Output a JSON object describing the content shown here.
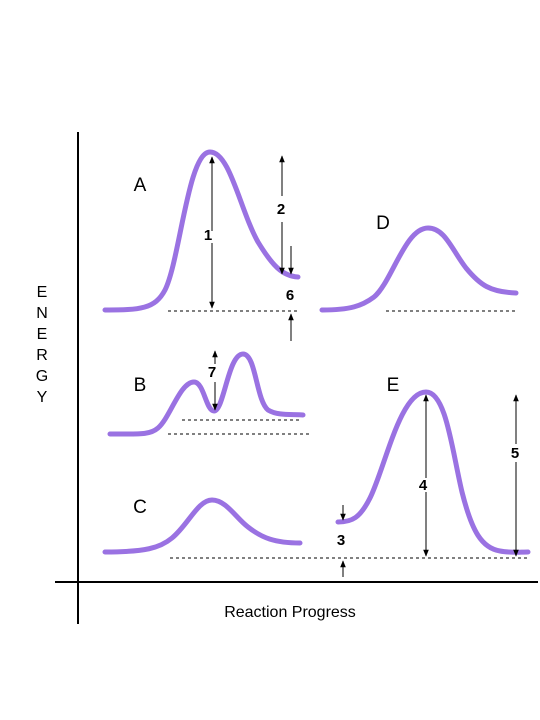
{
  "axes": {
    "y_label_letters": [
      "E",
      "N",
      "E",
      "R",
      "G",
      "Y"
    ],
    "x_label": "Reaction Progress"
  },
  "curves": {
    "a": "A",
    "b": "B",
    "c": "C",
    "d": "D",
    "e": "E"
  },
  "markers": {
    "m1": "1",
    "m2": "2",
    "m3": "3",
    "m4": "4",
    "m5": "5",
    "m6": "6",
    "m7": "7"
  },
  "colors": {
    "curve": "#9a72e2",
    "ink": "#000000"
  }
}
